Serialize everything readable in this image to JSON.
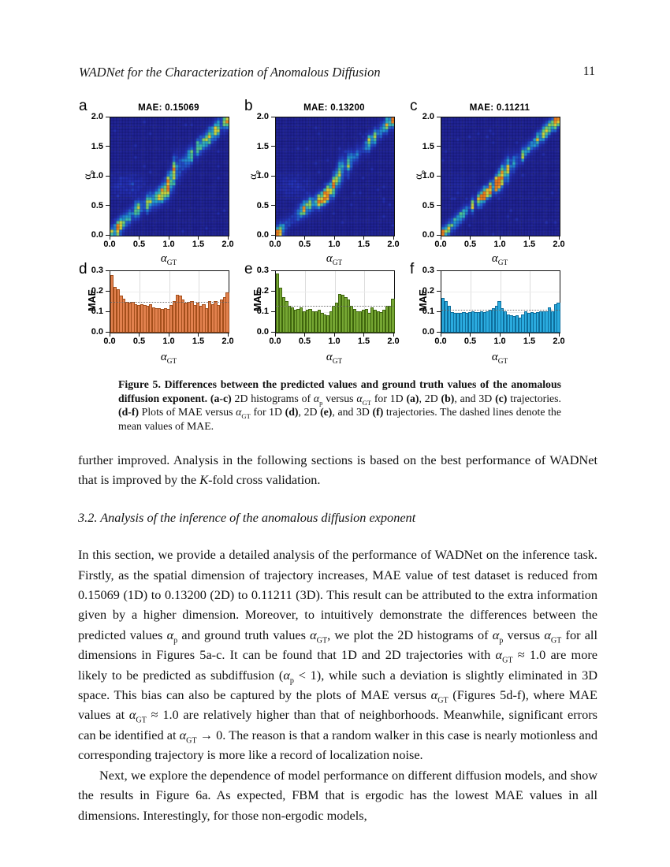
{
  "page": {
    "header_title": "WADNet for the Characterization of Anomalous Diffusion",
    "page_number": "11"
  },
  "figure": {
    "heat_panels": [
      {
        "letter": "a",
        "title": "MAE: 0.15069"
      },
      {
        "letter": "b",
        "title": "MAE: 0.13200"
      },
      {
        "letter": "c",
        "title": "MAE: 0.11211"
      }
    ],
    "bar_panels": [
      {
        "letter": "d"
      },
      {
        "letter": "e"
      },
      {
        "letter": "f"
      }
    ],
    "axis": {
      "x_base": "α",
      "x_sub": "GT",
      "y_base": "α",
      "y_sub": "p",
      "bar_ylabel": "MAE",
      "heat_xtick_labels": [
        "0.0",
        "0.5",
        "1.0",
        "1.5",
        "2.0"
      ],
      "heat_ytick_labels": [
        "0.0",
        "0.5",
        "1.0",
        "1.5",
        "2.0"
      ],
      "bar_ytick_labels": [
        "0.0",
        "0.1",
        "0.2",
        "0.3"
      ],
      "bar_xtick_labels": [
        "0.0",
        "0.5",
        "1.0",
        "1.5",
        "2.0"
      ]
    },
    "caption_segments": [
      {
        "t": "Figure 5. Differences between the predicted values and ground truth values of the anomalous diffusion exponent. ",
        "b": true
      },
      {
        "t": "(a-c) ",
        "b": true
      },
      {
        "t": "2D histograms of [ap] versus [aGT] for 1D "
      },
      {
        "t": "(a)",
        "b": true
      },
      {
        "t": ", 2D "
      },
      {
        "t": "(b)",
        "b": true
      },
      {
        "t": ", and 3D "
      },
      {
        "t": "(c)",
        "b": true
      },
      {
        "t": " trajectories. "
      },
      {
        "t": "(d-f) ",
        "b": true
      },
      {
        "t": "Plots of MAE versus [aGT] for 1D "
      },
      {
        "t": "(d)",
        "b": true
      },
      {
        "t": ", 2D "
      },
      {
        "t": "(e)",
        "b": true
      },
      {
        "t": ", and 3D "
      },
      {
        "t": "(f)",
        "b": true
      },
      {
        "t": " trajectories. The dashed lines denote the mean values of MAE."
      }
    ]
  },
  "body": {
    "para1_segments": [
      {
        "t": "further improved.  Analysis in the following sections is based on the best performance of WADNet that is improved by the "
      },
      {
        "t": "K",
        "i": true
      },
      {
        "t": "-fold cross validation."
      }
    ],
    "section_heading": "3.2. Analysis of the inference of the anomalous diffusion exponent",
    "para2_segments": [
      {
        "t": "In this section, we provide a detailed analysis of the performance of WADNet on the inference task.  Firstly, as the spatial dimension of trajectory increases, MAE value of test dataset is reduced from 0.15069 (1D) to 0.13200 (2D) to 0.11211 (3D).  This result can be attributed to the extra information given by a higher dimension.  Moreover, to intuitively demonstrate the differences between the predicted values [ap] and ground truth values [aGT], we plot the 2D histograms of [ap] versus [aGT] for all dimensions in Figures 5a-c.  It can be found that 1D and 2D trajectories with [aGT] ≈ 1.0 are more likely to be predicted as subdiffusion ([ap] < 1), while such a deviation is slightly eliminated in 3D space.  This bias can also be captured by the plots of MAE versus [aGT] (Figures 5d-f), where MAE values at [aGT] ≈ 1.0 are relatively higher than that of neighborhoods.  Meanwhile, significant errors can be identified at [aGT] → 0.  The reason is that a random walker in this case is nearly motionless and corresponding trajectory is more like a record of localization noise."
      }
    ],
    "para3_segments": [
      {
        "t": "Next, we explore the dependence of model performance on different diffusion models, and show the results in Figure 6a.  As expected, FBM that is ergodic has the lowest MAE values in all dimensions.  Interestingly, for those non-ergodic models,"
      }
    ]
  },
  "chart_data": {
    "colormap": {
      "name": "jet-like (dark blue → blue → cyan → green → yellow → orange)",
      "stops": [
        [
          0.0,
          32,
          32,
          142
        ],
        [
          0.18,
          38,
          52,
          190
        ],
        [
          0.35,
          35,
          110,
          220
        ],
        [
          0.5,
          40,
          175,
          215
        ],
        [
          0.63,
          95,
          210,
          135
        ],
        [
          0.76,
          195,
          222,
          70
        ],
        [
          0.88,
          250,
          210,
          45
        ],
        [
          1.0,
          243,
          125,
          28
        ]
      ]
    },
    "heatmaps": [
      {
        "type": "heatmap",
        "panel": "a",
        "dimension": "1D",
        "title": "MAE: 0.15069",
        "xlabel": "alpha_GT",
        "ylabel": "alpha_p",
        "x_range": [
          0,
          2
        ],
        "y_range": [
          0,
          2
        ],
        "bins": 40,
        "xticks": [
          0,
          0.5,
          1.0,
          1.5,
          2.0
        ],
        "yticks": [
          0,
          0.5,
          1.0,
          1.5,
          2.0
        ],
        "description": "Density concentrated along the diagonal alpha_p = alpha_GT; ridge dips below the diagonal to ~0.75 for alpha_GT between 0.7 and 1.0, then jumps back above 1.0; hot (orange/yellow) spots near (0.05,0.1), (0.85,0.75) and (1.95,1.95); faint blue off-diagonal cloud near (0.3,0.85).",
        "gen": {
          "seed": 7,
          "sigma": 0.095,
          "dip": 0.16,
          "dipC": 0.88,
          "dipW": 0.2,
          "base": 0.5,
          "h0": 0.55,
          "hd": 0.5,
          "h2": 0.6,
          "cloud": 0.14,
          "colVar": 0.35
        }
      },
      {
        "type": "heatmap",
        "panel": "b",
        "dimension": "2D",
        "title": "MAE: 0.13200",
        "xlabel": "alpha_GT",
        "ylabel": "alpha_p",
        "x_range": [
          0,
          2
        ],
        "y_range": [
          0,
          2
        ],
        "bins": 40,
        "xticks": [
          0,
          0.5,
          1.0,
          1.5,
          2.0
        ],
        "yticks": [
          0,
          0.5,
          1.0,
          1.5,
          2.0
        ],
        "description": "Same structure as panel a with slightly tighter diagonal; dip below diagonal near alpha_GT ≈ 0.7-1.0 with orange hot spot, bright ends at (0,0) and (2,2).",
        "gen": {
          "seed": 13,
          "sigma": 0.088,
          "dip": 0.17,
          "dipC": 0.85,
          "dipW": 0.18,
          "base": 0.5,
          "h0": 0.6,
          "hd": 0.55,
          "h2": 0.55,
          "cloud": 0.11,
          "colVar": 0.35
        }
      },
      {
        "type": "heatmap",
        "panel": "c",
        "dimension": "3D",
        "title": "MAE: 0.11211",
        "xlabel": "alpha_GT",
        "ylabel": "alpha_p",
        "x_range": [
          0,
          2
        ],
        "y_range": [
          0,
          2
        ],
        "bins": 40,
        "xticks": [
          0,
          0.5,
          1.0,
          1.5,
          2.0
        ],
        "yticks": [
          0,
          0.5,
          1.0,
          1.5,
          2.0
        ],
        "description": "Tight, nearly straight bright diagonal with many yellow speckles along its whole length; deviation near alpha_GT ≈ 1.0 almost eliminated.",
        "gen": {
          "seed": 29,
          "sigma": 0.08,
          "dip": 0.05,
          "dipC": 0.9,
          "dipW": 0.2,
          "base": 0.62,
          "h0": 0.6,
          "hd": 0.35,
          "h2": 0.6,
          "cloud": 0.04,
          "colVar": 0.45
        }
      }
    ],
    "bar_charts": [
      {
        "type": "bar",
        "panel": "d",
        "dimension": "1D",
        "xlabel": "alpha_GT",
        "ylabel": "MAE",
        "ylim": [
          0,
          0.3
        ],
        "x_start": 0.025,
        "bin_width": 0.05,
        "mean_line": 0.15069,
        "fill": "#e2814e",
        "edge": "#a44f1b",
        "values": [
          0.28,
          0.225,
          0.21,
          0.18,
          0.165,
          0.15,
          0.145,
          0.15,
          0.14,
          0.135,
          0.14,
          0.135,
          0.13,
          0.14,
          0.125,
          0.12,
          0.12,
          0.115,
          0.12,
          0.115,
          0.135,
          0.155,
          0.185,
          0.18,
          0.16,
          0.145,
          0.15,
          0.155,
          0.135,
          0.145,
          0.13,
          0.14,
          0.12,
          0.155,
          0.14,
          0.155,
          0.135,
          0.16,
          0.175,
          0.195
        ]
      },
      {
        "type": "bar",
        "panel": "e",
        "dimension": "2D",
        "xlabel": "alpha_GT",
        "ylabel": "MAE",
        "ylim": [
          0,
          0.3
        ],
        "x_start": 0.025,
        "bin_width": 0.05,
        "mean_line": 0.132,
        "fill": "#76a733",
        "edge": "#3f650d",
        "values": [
          0.29,
          0.22,
          0.175,
          0.155,
          0.13,
          0.125,
          0.11,
          0.115,
          0.125,
          0.105,
          0.11,
          0.115,
          0.105,
          0.105,
          0.11,
          0.095,
          0.09,
          0.085,
          0.105,
          0.13,
          0.145,
          0.19,
          0.185,
          0.175,
          0.16,
          0.13,
          0.115,
          0.105,
          0.105,
          0.11,
          0.115,
          0.095,
          0.125,
          0.11,
          0.105,
          0.1,
          0.11,
          0.13,
          0.13,
          0.165
        ]
      },
      {
        "type": "bar",
        "panel": "f",
        "dimension": "3D",
        "xlabel": "alpha_GT",
        "ylabel": "MAE",
        "ylim": [
          0,
          0.3
        ],
        "x_start": 0.025,
        "bin_width": 0.05,
        "mean_line": 0.11211,
        "fill": "#2aabdf",
        "edge": "#0e6e9c",
        "values": [
          0.17,
          0.155,
          0.13,
          0.1,
          0.095,
          0.095,
          0.095,
          0.1,
          0.095,
          0.1,
          0.105,
          0.1,
          0.1,
          0.105,
          0.1,
          0.105,
          0.11,
          0.12,
          0.13,
          0.155,
          0.12,
          0.105,
          0.09,
          0.085,
          0.08,
          0.085,
          0.075,
          0.09,
          0.105,
          0.095,
          0.1,
          0.095,
          0.1,
          0.105,
          0.105,
          0.105,
          0.125,
          0.105,
          0.14,
          0.145
        ]
      }
    ]
  }
}
